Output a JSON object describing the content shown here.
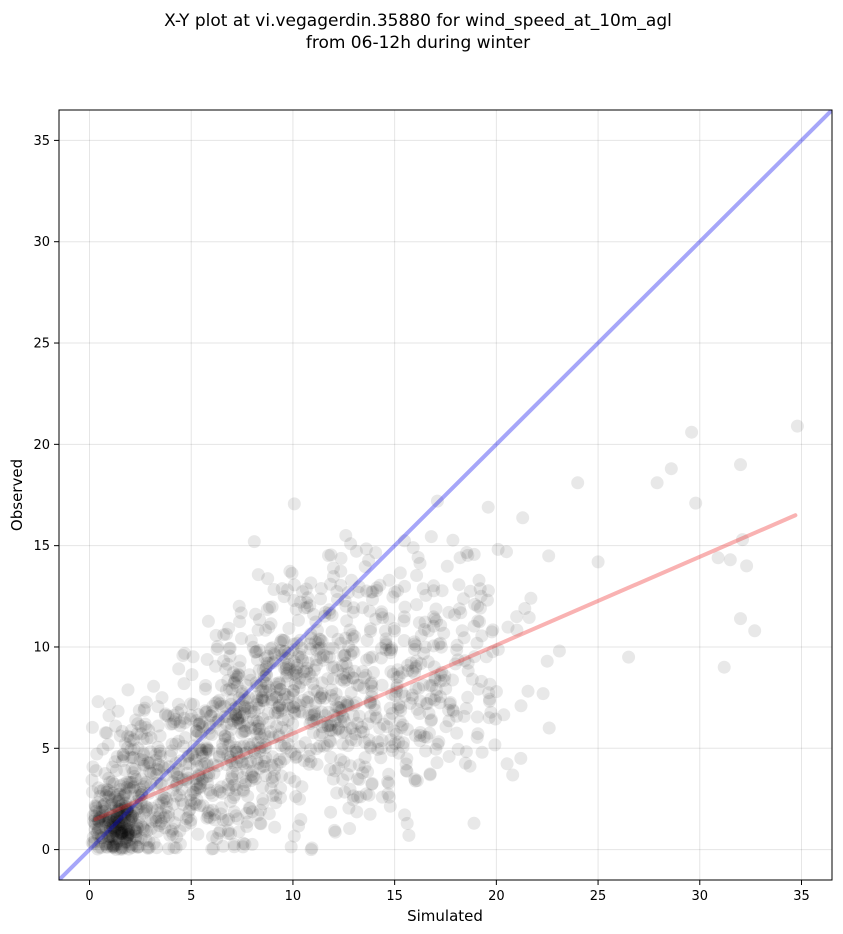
{
  "chart_data": {
    "type": "scatter",
    "title": [
      "X-Y plot at vi.vegagerdin.35880 for wind_speed_at_10m_agl",
      "from 06-12h during winter"
    ],
    "xlabel": "Simulated",
    "ylabel": "Observed",
    "xlim": [
      -1.5,
      36.5
    ],
    "ylim": [
      -1.5,
      36.5
    ],
    "xticks": [
      0,
      5,
      10,
      15,
      20,
      25,
      30,
      35
    ],
    "yticks": [
      0,
      5,
      10,
      15,
      20,
      25,
      30,
      35
    ],
    "grid": true,
    "point_color": "#000000",
    "point_alpha": 0.09,
    "identity_line": {
      "color": "#0000ee",
      "alpha": 0.35,
      "from": [
        -1.5,
        -1.5
      ],
      "to": [
        36.5,
        36.5
      ]
    },
    "regression_line": {
      "color": "#ee2222",
      "alpha": 0.35,
      "from": [
        0.3,
        1.5
      ],
      "to": [
        34.7,
        16.5
      ]
    },
    "outliers": [
      [
        34.8,
        20.9
      ],
      [
        29.6,
        20.6
      ],
      [
        32.0,
        19.0
      ],
      [
        28.6,
        18.8
      ],
      [
        24.0,
        18.1
      ],
      [
        27.9,
        18.1
      ],
      [
        29.8,
        17.1
      ],
      [
        19.6,
        16.9
      ],
      [
        25.0,
        14.2
      ],
      [
        30.9,
        14.4
      ],
      [
        31.5,
        14.3
      ],
      [
        32.1,
        15.3
      ],
      [
        32.3,
        14.0
      ],
      [
        32.0,
        11.4
      ],
      [
        32.7,
        10.8
      ],
      [
        31.2,
        9.0
      ],
      [
        26.5,
        9.5
      ],
      [
        21.2,
        4.5
      ],
      [
        22.6,
        6.0
      ],
      [
        22.3,
        7.7
      ],
      [
        23.1,
        9.8
      ],
      [
        22.5,
        9.3
      ],
      [
        8.1,
        15.2
      ],
      [
        12.6,
        15.5
      ],
      [
        15.7,
        0.7
      ],
      [
        10.9,
        0.0
      ],
      [
        18.9,
        1.3
      ],
      [
        17.1,
        17.2
      ],
      [
        20.5,
        14.7
      ],
      [
        21.7,
        12.4
      ],
      [
        21.0,
        11.5
      ],
      [
        21.4,
        11.9
      ],
      [
        20.0,
        7.8
      ],
      [
        19.3,
        4.8
      ]
    ],
    "clusters": [
      {
        "center": [
          1.4,
          1.3
        ],
        "spread": [
          0.7,
          0.9
        ],
        "count": 230
      },
      {
        "center": [
          2.6,
          3.2
        ],
        "spread": [
          1.4,
          1.8
        ],
        "count": 170
      },
      {
        "center": [
          4.8,
          4.0
        ],
        "spread": [
          1.6,
          2.2
        ],
        "count": 110
      },
      {
        "center": [
          6.8,
          5.6
        ],
        "spread": [
          1.5,
          2.0
        ],
        "count": 170
      },
      {
        "center": [
          9.0,
          7.8
        ],
        "spread": [
          1.7,
          2.2
        ],
        "count": 150
      },
      {
        "center": [
          11.5,
          7.3
        ],
        "spread": [
          2.0,
          2.6
        ],
        "count": 170
      },
      {
        "center": [
          13.8,
          7.4
        ],
        "spread": [
          2.0,
          2.8
        ],
        "count": 170
      },
      {
        "center": [
          16.6,
          8.7
        ],
        "spread": [
          1.9,
          3.0
        ],
        "count": 110
      },
      {
        "center": [
          18.8,
          10.2
        ],
        "spread": [
          1.5,
          2.6
        ],
        "count": 45
      },
      {
        "center": [
          6.5,
          2.3
        ],
        "spread": [
          2.2,
          1.3
        ],
        "count": 80
      },
      {
        "center": [
          9.6,
          9.5
        ],
        "spread": [
          1.2,
          1.4
        ],
        "count": 60
      },
      {
        "center": [
          13.0,
          12.4
        ],
        "spread": [
          2.2,
          1.6
        ],
        "count": 60
      }
    ]
  }
}
